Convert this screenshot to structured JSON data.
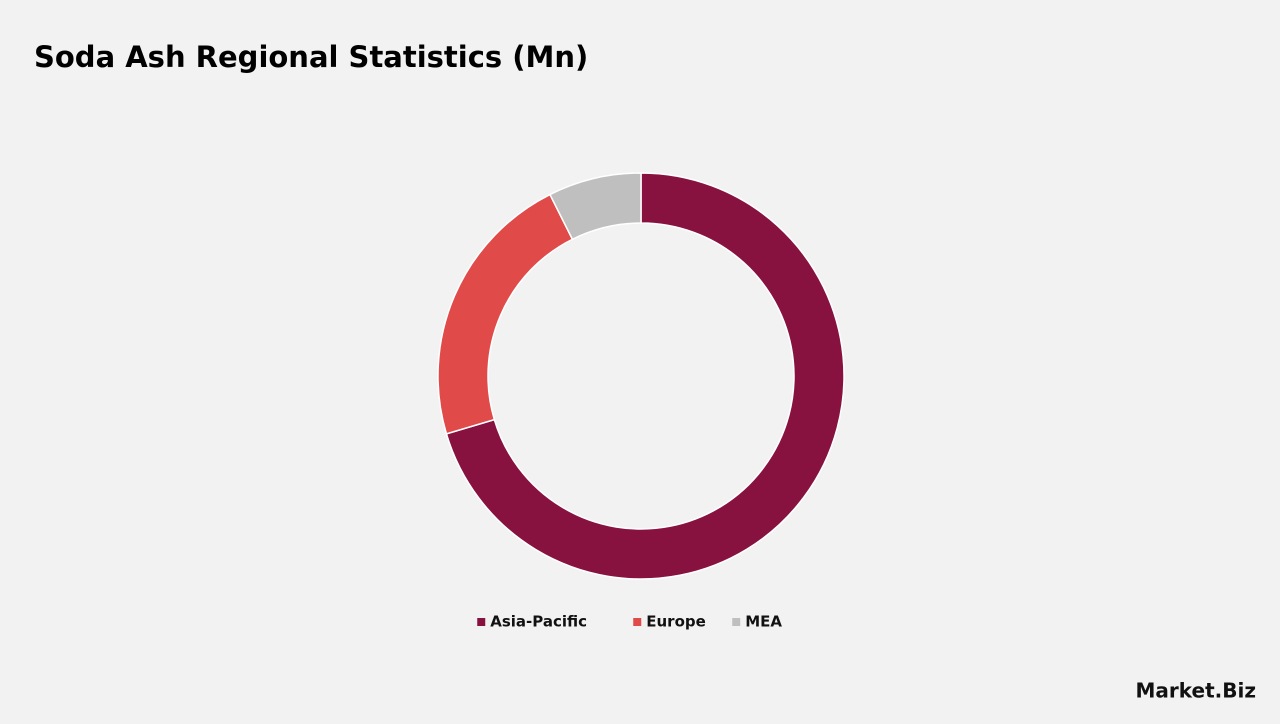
{
  "chart_data": {
    "type": "pie",
    "title": "Soda Ash Regional Statistics (Mn)",
    "categories": [
      "Asia-Pacific",
      "Europe",
      "MEA"
    ],
    "values": [
      70.4,
      22.2,
      7.4
    ],
    "colors": [
      "#88123f",
      "#e04b4a",
      "#bfbfbf"
    ],
    "donut": true,
    "legend": "bottom"
  },
  "brand": "Market.Biz"
}
